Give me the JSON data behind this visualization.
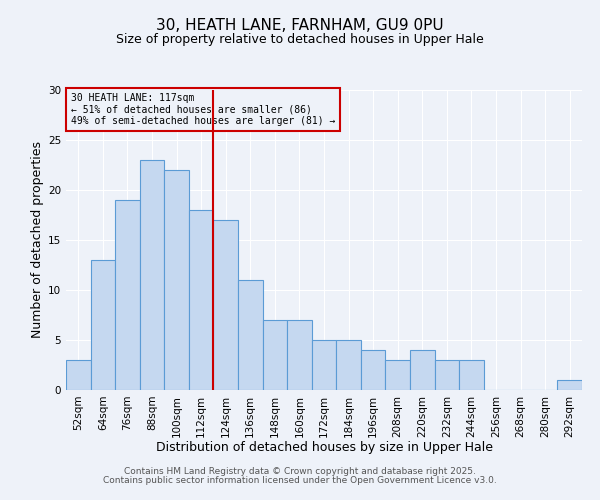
{
  "title": "30, HEATH LANE, FARNHAM, GU9 0PU",
  "subtitle": "Size of property relative to detached houses in Upper Hale",
  "xlabel": "Distribution of detached houses by size in Upper Hale",
  "ylabel": "Number of detached properties",
  "bins": [
    "52sqm",
    "64sqm",
    "76sqm",
    "88sqm",
    "100sqm",
    "112sqm",
    "124sqm",
    "136sqm",
    "148sqm",
    "160sqm",
    "172sqm",
    "184sqm",
    "196sqm",
    "208sqm",
    "220sqm",
    "232sqm",
    "244sqm",
    "256sqm",
    "268sqm",
    "280sqm",
    "292sqm"
  ],
  "values": [
    3,
    13,
    19,
    23,
    22,
    18,
    17,
    11,
    7,
    7,
    5,
    5,
    4,
    3,
    4,
    3,
    3,
    0,
    0,
    0,
    1
  ],
  "bar_color": "#c5d8f0",
  "bar_edge_color": "#5b9bd5",
  "vline_x": 5.5,
  "vline_color": "#cc0000",
  "annotation_title": "30 HEATH LANE: 117sqm",
  "annotation_line1": "← 51% of detached houses are smaller (86)",
  "annotation_line2": "49% of semi-detached houses are larger (81) →",
  "annotation_box_edge": "#cc0000",
  "ylim": [
    0,
    30
  ],
  "yticks": [
    0,
    5,
    10,
    15,
    20,
    25,
    30
  ],
  "footer1": "Contains HM Land Registry data © Crown copyright and database right 2025.",
  "footer2": "Contains public sector information licensed under the Open Government Licence v3.0.",
  "bg_color": "#eef2f9",
  "grid_color": "#ffffff",
  "title_fontsize": 11,
  "subtitle_fontsize": 9,
  "axis_label_fontsize": 9,
  "tick_fontsize": 7.5,
  "annotation_fontsize": 7,
  "footer_fontsize": 6.5
}
